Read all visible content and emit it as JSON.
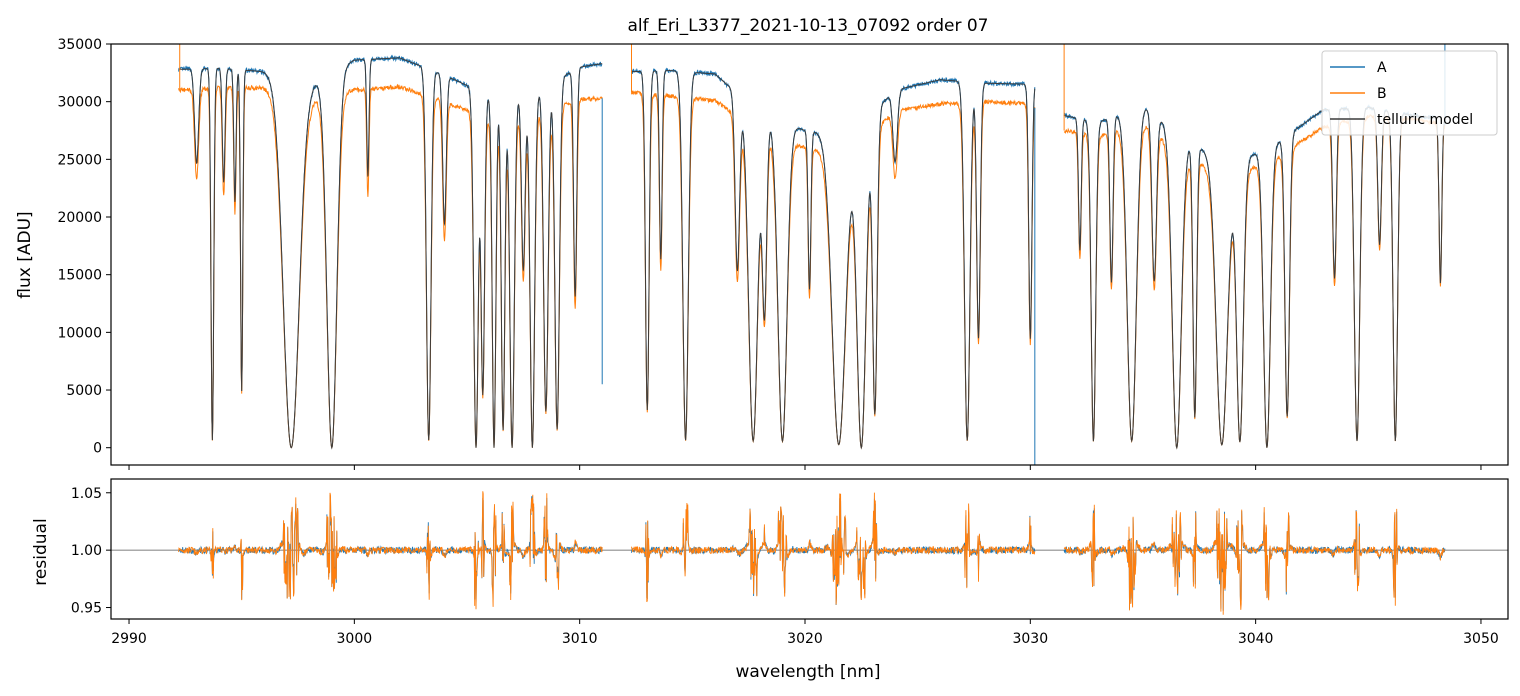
{
  "chart_data": [
    {
      "type": "line",
      "title": "alf_Eri_L3377_2021-10-13_07092  order 07",
      "xlabel": "",
      "ylabel": "flux [ADU]",
      "xlim": [
        2989.2,
        3051.2
      ],
      "ylim": [
        -1500,
        35000
      ],
      "yticks": [
        0,
        5000,
        10000,
        15000,
        20000,
        25000,
        30000,
        35000
      ],
      "legend": {
        "position": "top-right",
        "entries": [
          "A",
          "B",
          "telluric model"
        ]
      },
      "segments": [
        [
          2992.2,
          3011.0
        ],
        [
          3012.3,
          3030.2
        ],
        [
          3031.5,
          3048.4
        ]
      ],
      "series": [
        {
          "name": "A",
          "color": "#1f77b4",
          "continuum": [
            [
              2992.2,
              32800
            ],
            [
              2994,
              32900
            ],
            [
              2996,
              32600
            ],
            [
              2998,
              31500
            ],
            [
              3000,
              33600
            ],
            [
              3002,
              33800
            ],
            [
              3004,
              32300
            ],
            [
              3006,
              30500
            ],
            [
              3008,
              30800
            ],
            [
              3010,
              33000
            ],
            [
              3011,
              33300
            ],
            [
              3012.3,
              32600
            ],
            [
              3014,
              32700
            ],
            [
              3016,
              32400
            ],
            [
              3018,
              29000
            ],
            [
              3020,
              27500
            ],
            [
              3022,
              27000
            ],
            [
              3024,
              31000
            ],
            [
              3026,
              31900
            ],
            [
              3028,
              31600
            ],
            [
              3030.2,
              31500
            ],
            [
              3031.5,
              28800
            ],
            [
              3033,
              28200
            ],
            [
              3035,
              29700
            ],
            [
              3037,
              26500
            ],
            [
              3039,
              24500
            ],
            [
              3041,
              26500
            ],
            [
              3043,
              29300
            ],
            [
              3045,
              29500
            ],
            [
              3047,
              28800
            ],
            [
              3048.4,
              28500
            ]
          ]
        },
        {
          "name": "B",
          "color": "#ff7f0e",
          "continuum": [
            [
              2992.2,
              31000
            ],
            [
              2994,
              31200
            ],
            [
              2996,
              31200
            ],
            [
              2998,
              30200
            ],
            [
              3000,
              31000
            ],
            [
              3002,
              31300
            ],
            [
              3004,
              30000
            ],
            [
              3006,
              28500
            ],
            [
              3008,
              29000
            ],
            [
              3010,
              30200
            ],
            [
              3011,
              30300
            ],
            [
              3012.3,
              30800
            ],
            [
              3014,
              30500
            ],
            [
              3016,
              30100
            ],
            [
              3018,
              27500
            ],
            [
              3020,
              26000
            ],
            [
              3022,
              25500
            ],
            [
              3024,
              29200
            ],
            [
              3026,
              29800
            ],
            [
              3028,
              30000
            ],
            [
              3030.2,
              29800
            ],
            [
              3031.5,
              27500
            ],
            [
              3033,
              27000
            ],
            [
              3035,
              28200
            ],
            [
              3037,
              25000
            ],
            [
              3039,
              23500
            ],
            [
              3041,
              25200
            ],
            [
              3043,
              27800
            ],
            [
              3045,
              28700
            ],
            [
              3047,
              28500
            ],
            [
              3048.4,
              28000
            ]
          ]
        },
        {
          "name": "telluric model",
          "color": "#3c3c3c",
          "continuum": "model tracks A and B"
        }
      ],
      "absorption_lines": [
        [
          2993.0,
          0.25,
          0.09
        ],
        [
          2993.7,
          0.98,
          0.06
        ],
        [
          2994.2,
          0.3,
          0.06
        ],
        [
          2994.7,
          0.35,
          0.05
        ],
        [
          2995.0,
          0.85,
          0.05
        ],
        [
          2997.2,
          1.0,
          0.35
        ],
        [
          2999.0,
          1.0,
          0.22
        ],
        [
          3000.6,
          0.3,
          0.05
        ],
        [
          3003.3,
          0.98,
          0.1
        ],
        [
          3004.0,
          0.4,
          0.08
        ],
        [
          3005.4,
          1.0,
          0.1
        ],
        [
          3005.7,
          0.85,
          0.08
        ],
        [
          3006.2,
          1.0,
          0.08
        ],
        [
          3006.6,
          0.95,
          0.08
        ],
        [
          3007.0,
          1.0,
          0.1
        ],
        [
          3007.5,
          0.5,
          0.08
        ],
        [
          3007.9,
          1.0,
          0.1
        ],
        [
          3008.5,
          0.9,
          0.1
        ],
        [
          3009.0,
          0.95,
          0.1
        ],
        [
          3009.8,
          0.6,
          0.07
        ],
        [
          3013.0,
          0.9,
          0.08
        ],
        [
          3013.6,
          0.5,
          0.06
        ],
        [
          3014.7,
          0.98,
          0.12
        ],
        [
          3017.0,
          0.5,
          0.1
        ],
        [
          3017.7,
          0.98,
          0.2
        ],
        [
          3018.2,
          0.6,
          0.1
        ],
        [
          3019.0,
          0.98,
          0.2
        ],
        [
          3020.2,
          0.5,
          0.06
        ],
        [
          3021.5,
          0.99,
          0.3
        ],
        [
          3022.5,
          1.0,
          0.2
        ],
        [
          3023.1,
          0.9,
          0.1
        ],
        [
          3024.0,
          0.2,
          0.1
        ],
        [
          3027.2,
          0.98,
          0.12
        ],
        [
          3027.7,
          0.7,
          0.08
        ],
        [
          3030.0,
          0.7,
          0.07
        ],
        [
          3032.2,
          0.4,
          0.06
        ],
        [
          3032.8,
          0.98,
          0.1
        ],
        [
          3033.6,
          0.5,
          0.07
        ],
        [
          3034.5,
          0.98,
          0.2
        ],
        [
          3035.5,
          0.5,
          0.1
        ],
        [
          3036.5,
          1.0,
          0.2
        ],
        [
          3037.3,
          0.9,
          0.08
        ],
        [
          3038.5,
          0.99,
          0.25
        ],
        [
          3039.3,
          0.98,
          0.15
        ],
        [
          3040.5,
          1.0,
          0.15
        ],
        [
          3041.4,
          0.9,
          0.1
        ],
        [
          3043.5,
          0.5,
          0.08
        ],
        [
          3044.5,
          0.98,
          0.12
        ],
        [
          3045.5,
          0.4,
          0.08
        ],
        [
          3046.2,
          0.98,
          0.1
        ],
        [
          3048.2,
          0.5,
          0.06
        ]
      ],
      "spikes": [
        [
          2992.25,
          35000
        ],
        [
          3011.0,
          5500
        ],
        [
          3012.3,
          35000
        ],
        [
          3030.2,
          -1500
        ],
        [
          3031.5,
          35000
        ],
        [
          3048.4,
          35000
        ]
      ]
    },
    {
      "type": "line",
      "title": "",
      "xlabel": "wavelength [nm]",
      "ylabel": "residual",
      "xlim": [
        2989.2,
        3051.2
      ],
      "ylim": [
        0.94,
        1.062
      ],
      "yticks": [
        0.95,
        1.0,
        1.05
      ],
      "xticks": [
        2990,
        3000,
        3010,
        3020,
        3030,
        3040,
        3050
      ],
      "reference_line": 1.0,
      "series": [
        {
          "name": "A",
          "color": "#1f77b4"
        },
        {
          "name": "B",
          "color": "#ff7f0e"
        }
      ]
    }
  ],
  "labels": {
    "title": "alf_Eri_L3377_2021-10-13_07092  order 07",
    "ylabel_top": "flux [ADU]",
    "ylabel_bottom": "residual",
    "xlabel": "wavelength [nm]",
    "legend_a": "A",
    "legend_b": "B",
    "legend_model": "telluric model"
  },
  "colors": {
    "A": "#1f77b4",
    "B": "#ff7f0e",
    "model": "#3c3c3c",
    "axis": "#000000",
    "refline": "#555555"
  }
}
